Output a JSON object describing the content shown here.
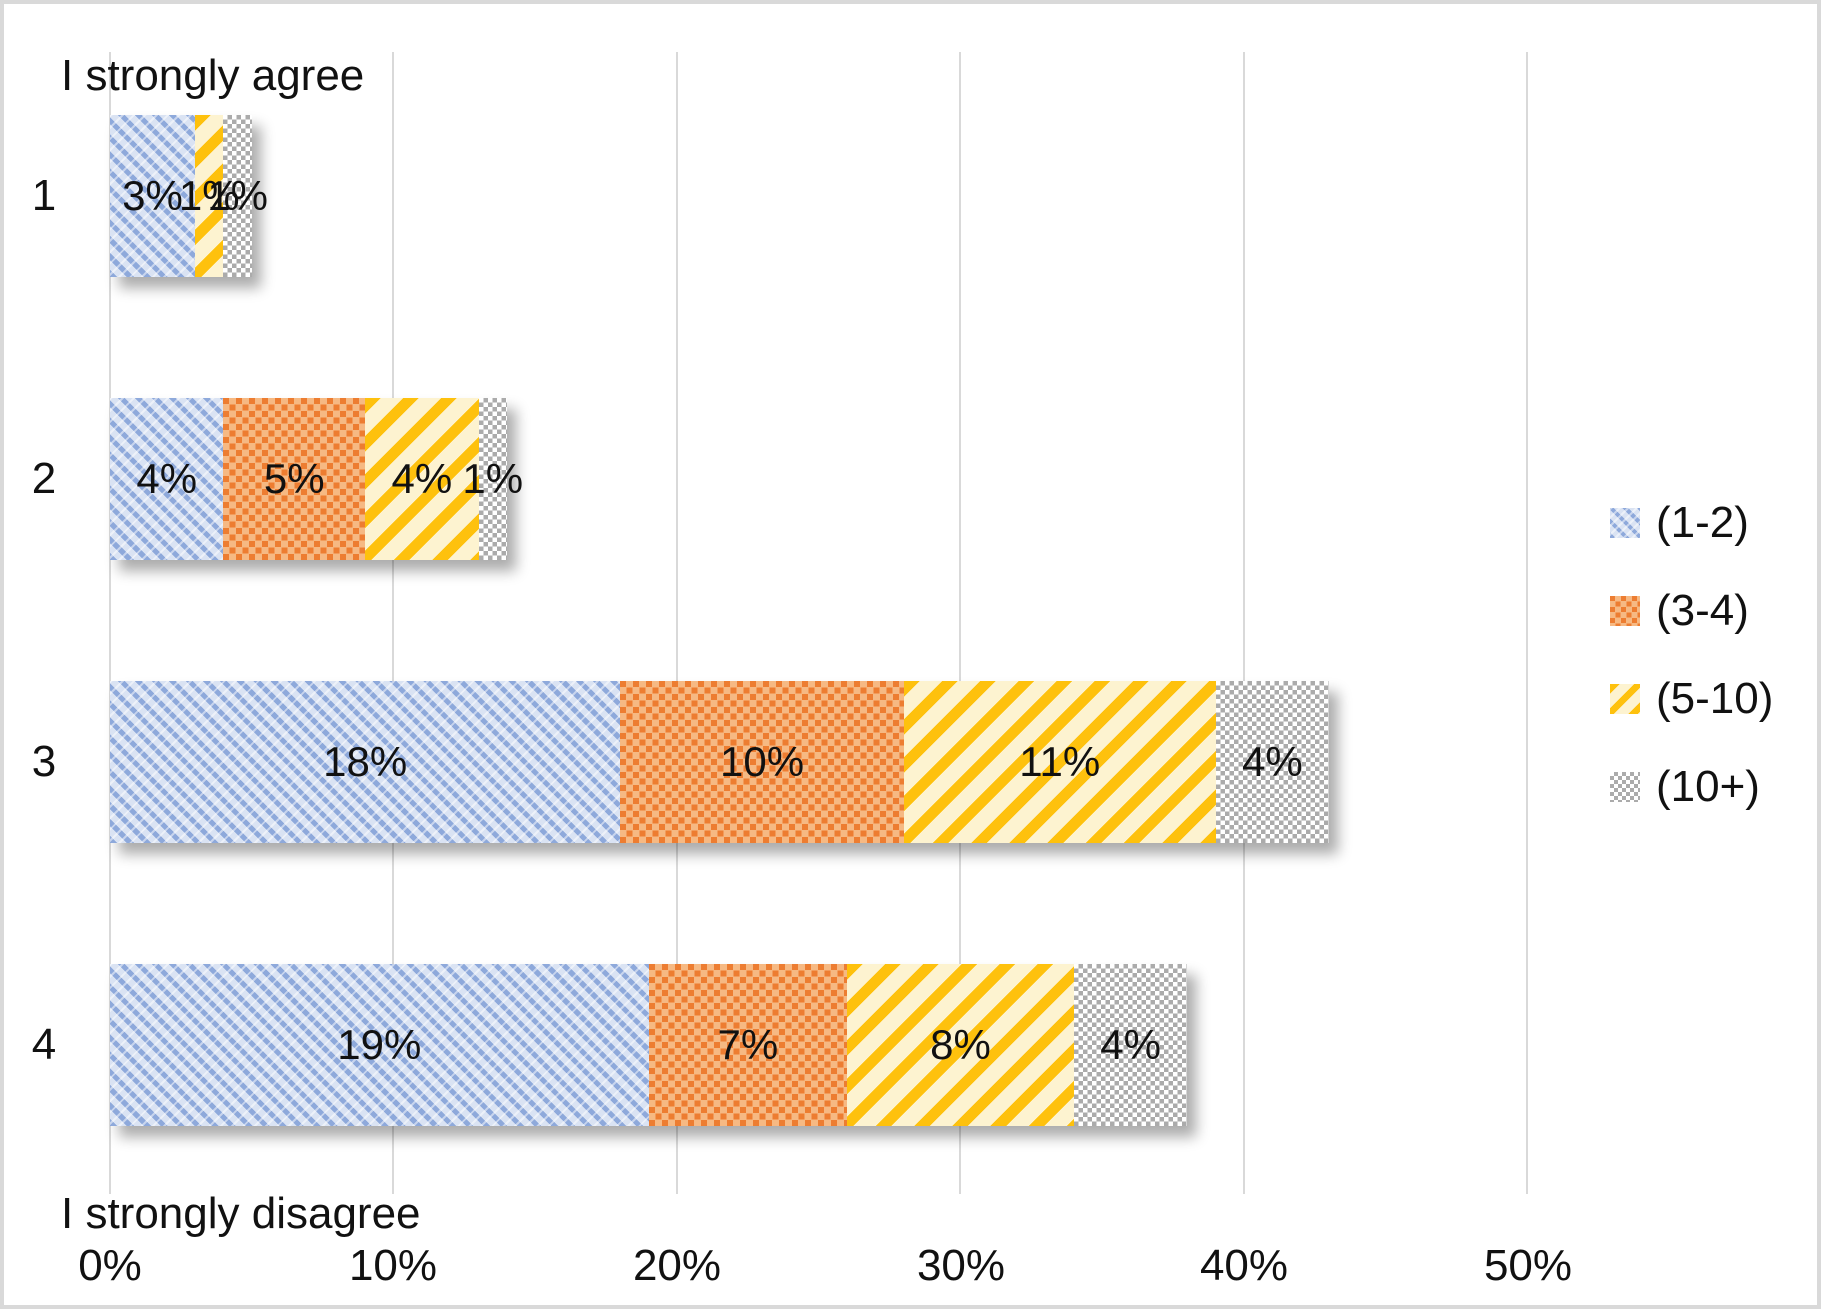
{
  "chart_data": {
    "type": "bar",
    "orientation": "horizontal",
    "stacked": true,
    "categories": [
      "1",
      "2",
      "3",
      "4"
    ],
    "series": [
      {
        "name": "(1-2)",
        "pattern": "diagonal-dash",
        "color": "#8ea9db",
        "bg": "#dae3f3",
        "values": [
          3,
          4,
          18,
          19
        ]
      },
      {
        "name": "(3-4)",
        "pattern": "square-lattice",
        "color": "#ed7d31",
        "bg": "#f6b983",
        "values": [
          0,
          5,
          10,
          7
        ]
      },
      {
        "name": "(5-10)",
        "pattern": "diagonal-stripe",
        "color": "#fec10d",
        "bg": "#fdf3d0",
        "values": [
          1,
          4,
          11,
          8
        ]
      },
      {
        "name": "(10+)",
        "pattern": "checker",
        "color": "#ababab",
        "bg": "#ffffff",
        "values": [
          1,
          1,
          4,
          4
        ]
      }
    ],
    "data_labels": [
      [
        "3%",
        "",
        "1%",
        "1%"
      ],
      [
        "4%",
        "5%",
        "4%",
        "1%"
      ],
      [
        "18%",
        "10%",
        "11%",
        "4%"
      ],
      [
        "19%",
        "7%",
        "8%",
        "4%"
      ]
    ],
    "x_ticks": [
      "0%",
      "10%",
      "20%",
      "30%",
      "40%",
      "50%"
    ],
    "xlim": [
      0,
      55
    ],
    "grid": true,
    "gridline_color": "#d9d9d9",
    "top_left_label": "I strongly agree",
    "bottom_left_label": "I strongly disagree",
    "legend_position": "right",
    "text_color": "#111111",
    "border_color": "#d9d9d9",
    "bar_shadow": true
  }
}
